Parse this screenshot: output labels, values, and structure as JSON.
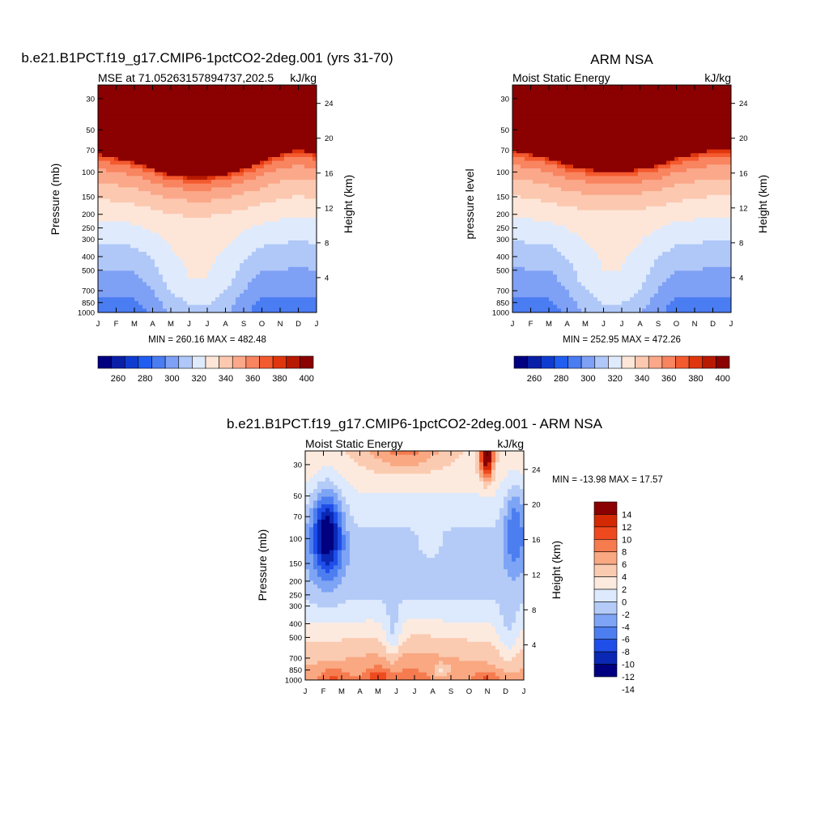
{
  "page": {
    "title_left": "b.e21.B1PCT.f19_g17.CMIP6-1pctCO2-2deg.001 (yrs 31-70)",
    "title_right": "ARM NSA",
    "title_diff": "b.e21.B1PCT.f19_g17.CMIP6-1pctCO2-2deg.001 - ARM NSA"
  },
  "colors": {
    "mse_levels": [
      "#000080",
      "#0a1fa8",
      "#0f3cd0",
      "#1f5ef0",
      "#4a7cf2",
      "#7ea0f5",
      "#b0c8f8",
      "#dfeafc",
      "#fde6d8",
      "#fcc8b0",
      "#fba88a",
      "#f98460",
      "#f45a2f",
      "#e0360e",
      "#b81a00",
      "#8b0000"
    ],
    "diff_levels": [
      "#000080",
      "#0a28b4",
      "#1f4ee8",
      "#4c7ef0",
      "#7ea4f5",
      "#b4cbf8",
      "#dde9fc",
      "#fdeadf",
      "#fbcbb1",
      "#f9a882",
      "#f67b4f",
      "#ef4a1f",
      "#d42a04",
      "#8b0000"
    ]
  },
  "chart_data": [
    {
      "type": "contour",
      "id": "model",
      "subtitle_left": "MSE at 71.05263157894737,202.5",
      "subtitle_right": "kJ/kg",
      "ylabel": "Pressure (mb)",
      "ylabel_right": "Height (km)",
      "x_ticks": [
        "J",
        "F",
        "M",
        "A",
        "M",
        "J",
        "J",
        "A",
        "S",
        "O",
        "N",
        "D",
        "J"
      ],
      "y_ticks": [
        "30",
        "50",
        "70",
        "100",
        "150",
        "200",
        "250",
        "300",
        "400",
        "500",
        "700",
        "850",
        "1000"
      ],
      "y_tick_values": [
        30,
        50,
        70,
        100,
        150,
        200,
        250,
        300,
        400,
        500,
        700,
        850,
        1000
      ],
      "y_range": [
        1000,
        24
      ],
      "height_ticks": [
        "4",
        "8",
        "12",
        "16",
        "20",
        "24"
      ],
      "height_tick_values": [
        4,
        8,
        12,
        16,
        20,
        24
      ],
      "stats": "MIN = 260.16 MAX = 482.48",
      "min": 260.16,
      "max": 482.48,
      "colorbar_labels": [
        "260",
        "280",
        "300",
        "320",
        "340",
        "360",
        "380",
        "400"
      ],
      "levels": [
        260,
        270,
        280,
        290,
        300,
        310,
        320,
        330,
        340,
        350,
        360,
        370,
        380,
        390,
        400
      ],
      "tropopause_hpa": [
        75,
        80,
        85,
        95,
        105,
        110,
        110,
        105,
        95,
        85,
        75,
        70,
        75
      ],
      "summer_depth": [
        0,
        0,
        0,
        0.3,
        0.75,
        1,
        1,
        0.75,
        0.3,
        0,
        0,
        0,
        0
      ]
    },
    {
      "type": "contour",
      "id": "obs",
      "subtitle_left": "Moist Static Energy",
      "subtitle_right": "kJ/kg",
      "ylabel": "pressure level",
      "ylabel_right": "Height (km)",
      "x_ticks": [
        "J",
        "F",
        "M",
        "A",
        "M",
        "J",
        "J",
        "A",
        "S",
        "O",
        "N",
        "D",
        "J"
      ],
      "y_ticks": [
        "30",
        "50",
        "70",
        "100",
        "150",
        "200",
        "250",
        "300",
        "400",
        "500",
        "700",
        "850",
        "1000"
      ],
      "y_tick_values": [
        30,
        50,
        70,
        100,
        150,
        200,
        250,
        300,
        400,
        500,
        700,
        850,
        1000
      ],
      "y_range": [
        1000,
        24
      ],
      "height_ticks": [
        "4",
        "8",
        "12",
        "16",
        "20",
        "24"
      ],
      "height_tick_values": [
        4,
        8,
        12,
        16,
        20,
        24
      ],
      "stats": "MIN = 252.95 MAX = 472.26",
      "min": 252.95,
      "max": 472.26,
      "colorbar_labels": [
        "260",
        "280",
        "300",
        "320",
        "340",
        "360",
        "380",
        "400"
      ],
      "levels": [
        260,
        270,
        280,
        290,
        300,
        310,
        320,
        330,
        340,
        350,
        360,
        370,
        380,
        390,
        400
      ],
      "tropopause_hpa": [
        70,
        75,
        80,
        90,
        95,
        100,
        100,
        95,
        90,
        80,
        75,
        70,
        70
      ],
      "summer_depth": [
        0,
        0,
        0,
        0.3,
        0.75,
        1,
        1,
        0.75,
        0.3,
        0,
        0,
        0,
        0
      ]
    },
    {
      "type": "contour",
      "id": "diff",
      "subtitle_left": "Moist Static Energy",
      "subtitle_right": "kJ/kg",
      "ylabel": "Pressure (mb)",
      "ylabel_right": "Height (km)",
      "x_ticks": [
        "J",
        "F",
        "M",
        "A",
        "M",
        "J",
        "J",
        "A",
        "S",
        "O",
        "N",
        "D",
        "J"
      ],
      "y_ticks": [
        "30",
        "50",
        "70",
        "100",
        "150",
        "200",
        "250",
        "300",
        "400",
        "500",
        "700",
        "850",
        "1000"
      ],
      "y_tick_values": [
        30,
        50,
        70,
        100,
        150,
        200,
        250,
        300,
        400,
        500,
        700,
        850,
        1000
      ],
      "y_range": [
        1000,
        24
      ],
      "height_ticks": [
        "4",
        "8",
        "12",
        "16",
        "20",
        "24"
      ],
      "height_tick_values": [
        4,
        8,
        12,
        16,
        20,
        24
      ],
      "stats": "MIN = -13.98 MAX =  17.57",
      "min": -13.98,
      "max": 17.57,
      "colorbar_labels": [
        "14",
        "12",
        "10",
        "8",
        "6",
        "4",
        "2",
        "0",
        "-2",
        "-4",
        "-6",
        "-8",
        "-10",
        "-12",
        "-14"
      ],
      "levels": [
        -14,
        -12,
        -10,
        -8,
        -6,
        -4,
        -2,
        0,
        2,
        4,
        6,
        8,
        10,
        12,
        14
      ]
    }
  ]
}
